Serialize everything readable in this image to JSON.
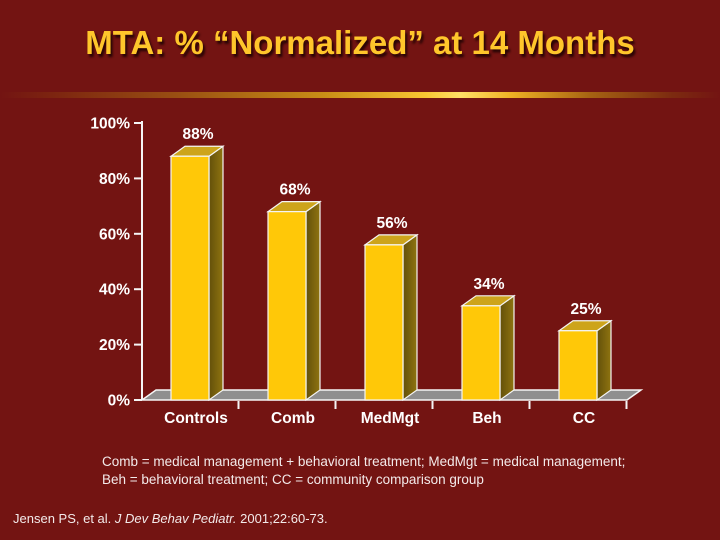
{
  "slide": {
    "title": "MTA: % “Normalized” at 14 Months",
    "footnote": {
      "line1": "Comb = medical management + behavioral treatment; MedMgt = medical management;",
      "line2": "Beh = behavioral treatment; CC = community comparison group"
    },
    "citation": {
      "prefix": "Jensen PS, et al. ",
      "journal": "J Dev Behav Pediatr.",
      "suffix": " 2001;22:60-73."
    }
  },
  "colors": {
    "background": "#731412",
    "title_text": "#FFC62B",
    "axis_text": "#FFFFFF",
    "bar_front": "#FFC808",
    "bar_top": "#CDA41B",
    "bar_side_dark": "#63500A",
    "bar_side_light": "#8F7410",
    "floor": "#8F8F8F",
    "outline": "#F5F5F5",
    "footnote_text": "#F3EAEA"
  },
  "chart_data": {
    "type": "bar",
    "style": "3d-column",
    "title": "MTA: % “Normalized” at 14 Months",
    "categories": [
      "Controls",
      "Comb",
      "MedMgt",
      "Beh",
      "CC"
    ],
    "values": [
      88,
      68,
      56,
      34,
      25
    ],
    "value_labels": [
      "88%",
      "68%",
      "56%",
      "34%",
      "25%"
    ],
    "xlabel": "",
    "ylabel": "",
    "ylim": [
      0,
      100
    ],
    "y_ticks": [
      0,
      20,
      40,
      60,
      80,
      100
    ],
    "y_tick_labels": [
      "0%",
      "20%",
      "40%",
      "60%",
      "80%",
      "100%"
    ],
    "grid": false,
    "legend": false
  }
}
